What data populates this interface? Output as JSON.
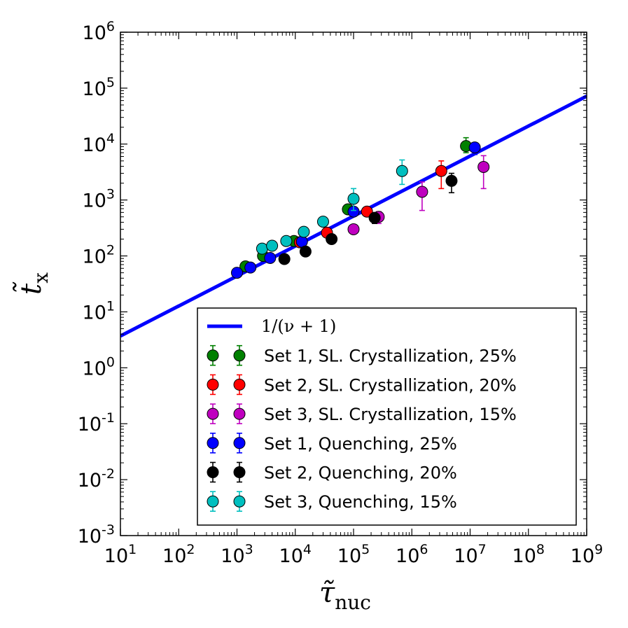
{
  "chart_data": {
    "type": "scatter",
    "xscale": "log",
    "yscale": "log",
    "xlim": [
      10,
      1000000000
    ],
    "ylim": [
      0.001,
      1000000
    ],
    "xlabel": "τ̃",
    "xlabel_sub": "nuc",
    "ylabel": "t̃",
    "ylabel_sub": "x",
    "x_ticks": [
      {
        "base": "10",
        "exp": "1",
        "value": 10
      },
      {
        "base": "10",
        "exp": "2",
        "value": 100
      },
      {
        "base": "10",
        "exp": "3",
        "value": 1000
      },
      {
        "base": "10",
        "exp": "4",
        "value": 10000
      },
      {
        "base": "10",
        "exp": "5",
        "value": 100000
      },
      {
        "base": "10",
        "exp": "6",
        "value": 1000000
      },
      {
        "base": "10",
        "exp": "7",
        "value": 10000000
      },
      {
        "base": "10",
        "exp": "8",
        "value": 100000000
      },
      {
        "base": "10",
        "exp": "9",
        "value": 1000000000
      }
    ],
    "y_ticks": [
      {
        "base": "10",
        "exp": "-3",
        "value": 0.001
      },
      {
        "base": "10",
        "exp": "-2",
        "value": 0.01
      },
      {
        "base": "10",
        "exp": "-1",
        "value": 0.1
      },
      {
        "base": "10",
        "exp": "0",
        "value": 1
      },
      {
        "base": "10",
        "exp": "1",
        "value": 10
      },
      {
        "base": "10",
        "exp": "2",
        "value": 100
      },
      {
        "base": "10",
        "exp": "3",
        "value": 1000
      },
      {
        "base": "10",
        "exp": "4",
        "value": 10000
      },
      {
        "base": "10",
        "exp": "5",
        "value": 100000
      },
      {
        "base": "10",
        "exp": "6",
        "value": 1000000
      }
    ],
    "line": {
      "label": "1/(ν + 1)",
      "color": "#0000ff",
      "x": [
        10,
        1000000000
      ],
      "y": [
        3.7,
        72000
      ]
    },
    "series": [
      {
        "name": "Set 1, SL. Crystallization, 25%",
        "color": "#008000",
        "points": [
          {
            "x": 1400,
            "y": 65,
            "lo": 58,
            "hi": 72
          },
          {
            "x": 2800,
            "y": 100,
            "lo": 90,
            "hi": 110
          },
          {
            "x": 9500,
            "y": 185,
            "lo": 170,
            "hi": 200
          },
          {
            "x": 80000,
            "y": 680,
            "lo": 620,
            "hi": 750
          },
          {
            "x": 8500000,
            "y": 9200,
            "lo": 7000,
            "hi": 13000
          }
        ]
      },
      {
        "name": "Set 2, SL. Crystallization, 20%",
        "color": "#ff0000",
        "points": [
          {
            "x": 12000,
            "y": 175,
            "lo": 160,
            "hi": 190
          },
          {
            "x": 35000,
            "y": 260,
            "lo": 240,
            "hi": 280
          },
          {
            "x": 170000,
            "y": 620,
            "lo": 570,
            "hi": 680
          },
          {
            "x": 3200000,
            "y": 3300,
            "lo": 1600,
            "hi": 5000
          }
        ]
      },
      {
        "name": "Set 3, SL. Crystallization, 15%",
        "color": "#bf00bf",
        "points": [
          {
            "x": 100000,
            "y": 300,
            "lo": 270,
            "hi": 330
          },
          {
            "x": 270000,
            "y": 500,
            "lo": 380,
            "hi": 620
          },
          {
            "x": 1500000,
            "y": 1400,
            "lo": 650,
            "hi": 2100
          },
          {
            "x": 17000000,
            "y": 3900,
            "lo": 1600,
            "hi": 6200
          }
        ]
      },
      {
        "name": "Set 1, Quenching, 25%",
        "color": "#0000ff",
        "points": [
          {
            "x": 1000,
            "y": 50,
            "lo": 46,
            "hi": 55
          },
          {
            "x": 1700,
            "y": 62,
            "lo": 57,
            "hi": 68
          },
          {
            "x": 3700,
            "y": 92,
            "lo": 85,
            "hi": 100
          },
          {
            "x": 13000,
            "y": 180,
            "lo": 165,
            "hi": 195
          },
          {
            "x": 100000,
            "y": 620,
            "lo": 560,
            "hi": 700
          },
          {
            "x": 12000000,
            "y": 8700,
            "lo": 6500,
            "hi": 10500
          }
        ]
      },
      {
        "name": "Set 2, Quenching, 20%",
        "color": "#000000",
        "points": [
          {
            "x": 6500,
            "y": 88,
            "lo": 80,
            "hi": 96
          },
          {
            "x": 15000,
            "y": 120,
            "lo": 110,
            "hi": 130
          },
          {
            "x": 42000,
            "y": 200,
            "lo": 185,
            "hi": 215
          },
          {
            "x": 230000,
            "y": 480,
            "lo": 380,
            "hi": 570
          },
          {
            "x": 4800000,
            "y": 2200,
            "lo": 1350,
            "hi": 3000
          }
        ]
      },
      {
        "name": "Set 3, Quenching, 15%",
        "color": "#00bfbf",
        "points": [
          {
            "x": 2700,
            "y": 135,
            "lo": 125,
            "hi": 145
          },
          {
            "x": 4000,
            "y": 152,
            "lo": 140,
            "hi": 165
          },
          {
            "x": 7000,
            "y": 185,
            "lo": 170,
            "hi": 200
          },
          {
            "x": 14000,
            "y": 270,
            "lo": 250,
            "hi": 290
          },
          {
            "x": 30000,
            "y": 410,
            "lo": 380,
            "hi": 440
          },
          {
            "x": 100000,
            "y": 1050,
            "lo": 650,
            "hi": 1600
          },
          {
            "x": 680000,
            "y": 3300,
            "lo": 1900,
            "hi": 5200
          }
        ]
      }
    ],
    "legend": {
      "position": "lower-right",
      "entries": [
        {
          "label": "1/(ν + 1)",
          "kind": "line",
          "color": "#0000ff"
        },
        {
          "label": "Set 1, SL. Crystallization, 25%",
          "kind": "marker",
          "color": "#008000"
        },
        {
          "label": "Set 2, SL. Crystallization, 20%",
          "kind": "marker",
          "color": "#ff0000"
        },
        {
          "label": "Set 3, SL. Crystallization, 15%",
          "kind": "marker",
          "color": "#bf00bf"
        },
        {
          "label": "Set 1, Quenching, 25%",
          "kind": "marker",
          "color": "#0000ff"
        },
        {
          "label": "Set 2, Quenching, 20%",
          "kind": "marker",
          "color": "#000000"
        },
        {
          "label": "Set 3, Quenching, 15%",
          "kind": "marker",
          "color": "#00bfbf"
        }
      ]
    }
  }
}
